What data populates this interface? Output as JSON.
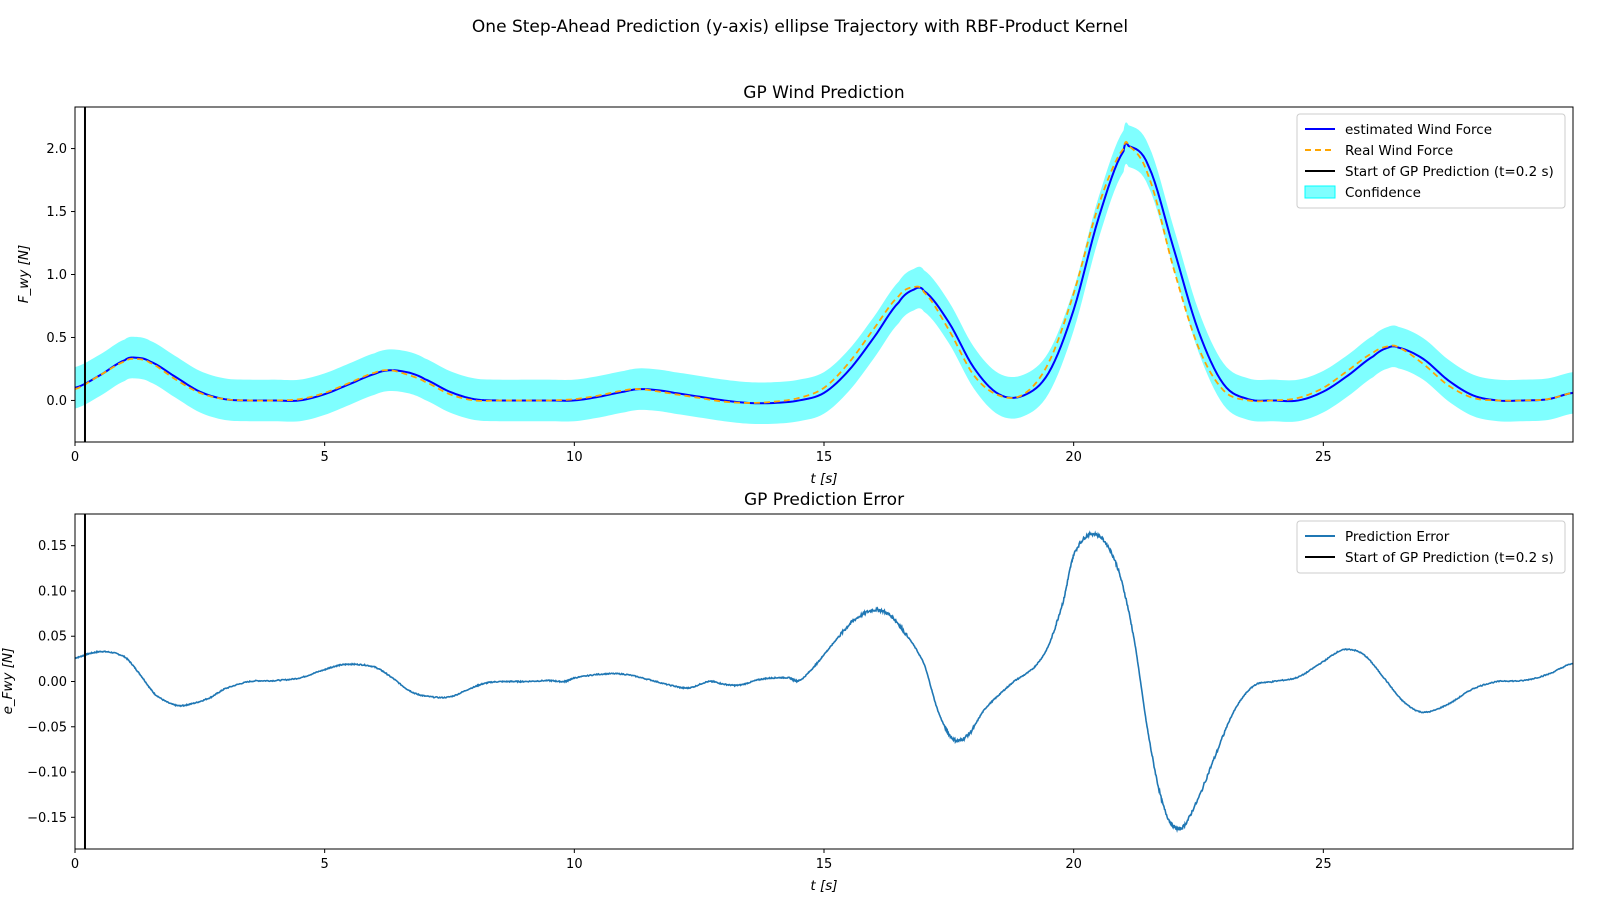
{
  "figure": {
    "suptitle": "One Step-Ahead Prediction (y-axis) ellipse Trajectory with RBF-Product Kernel"
  },
  "chart_data": [
    {
      "type": "line",
      "title": "GP Wind Prediction",
      "xlabel": "t [s]",
      "ylabel": "F_wy [N]",
      "xlim": [
        0,
        30
      ],
      "ylim": [
        -0.33,
        2.33
      ],
      "xticks": [
        0,
        5,
        10,
        15,
        20,
        25
      ],
      "xtick_labels": [
        "0",
        "5",
        "10",
        "15",
        "20",
        "25"
      ],
      "yticks": [
        0.0,
        0.5,
        1.0,
        1.5,
        2.0
      ],
      "ytick_labels": [
        "0.0",
        "0.5",
        "1.0",
        "1.5",
        "2.0"
      ],
      "grid": false,
      "legend_position": "top-right",
      "vline": {
        "x": 0.2,
        "label": "Start of GP Prediction (t=0.2 s)",
        "color": "#000000"
      },
      "series": [
        {
          "name": "estimated Wind Force",
          "style": "solid",
          "color": "#0000ff"
        },
        {
          "name": "Real Wind Force",
          "style": "dashed",
          "color": "#ffa500"
        },
        {
          "name": "Confidence",
          "style": "band",
          "color": "#00ffff",
          "halfwidth": 0.165
        }
      ],
      "x": [
        0,
        0.5,
        1,
        1.2,
        1.5,
        2,
        2.5,
        3,
        3.5,
        4,
        4.5,
        5,
        5.5,
        6,
        6.3,
        6.7,
        7,
        7.5,
        8,
        8.5,
        9,
        9.5,
        10,
        10.5,
        11,
        11.3,
        11.7,
        12,
        12.5,
        13,
        13.5,
        14,
        14.5,
        15,
        15.5,
        16,
        16.5,
        16.8,
        17,
        17.5,
        18,
        18.5,
        19,
        19.5,
        20,
        20.5,
        21,
        21.1,
        21.5,
        22,
        22.5,
        23,
        23.5,
        24,
        24.5,
        25,
        25.5,
        26,
        26.3,
        26.5,
        27,
        27.5,
        28,
        28.5,
        29,
        29.5,
        30
      ],
      "real": [
        0.09,
        0.2,
        0.31,
        0.33,
        0.3,
        0.17,
        0.06,
        0.01,
        0.0,
        0.0,
        0.01,
        0.06,
        0.14,
        0.22,
        0.24,
        0.2,
        0.15,
        0.05,
        0.0,
        0.0,
        0.0,
        0.0,
        0.01,
        0.04,
        0.08,
        0.09,
        0.07,
        0.05,
        0.02,
        -0.01,
        -0.02,
        -0.01,
        0.02,
        0.1,
        0.3,
        0.57,
        0.83,
        0.9,
        0.86,
        0.56,
        0.2,
        0.04,
        0.05,
        0.3,
        0.85,
        1.55,
        2.0,
        2.02,
        1.78,
        1.05,
        0.42,
        0.08,
        0.0,
        0.0,
        0.02,
        0.1,
        0.24,
        0.38,
        0.43,
        0.42,
        0.29,
        0.12,
        0.02,
        0.0,
        0.0,
        0.01,
        0.06
      ],
      "estimated": [
        0.1,
        0.2,
        0.32,
        0.34,
        0.31,
        0.19,
        0.07,
        0.01,
        0.0,
        0.0,
        0.0,
        0.05,
        0.13,
        0.21,
        0.24,
        0.22,
        0.17,
        0.07,
        0.01,
        0.0,
        0.0,
        0.0,
        0.0,
        0.03,
        0.07,
        0.09,
        0.08,
        0.06,
        0.03,
        0.0,
        -0.02,
        -0.02,
        0.0,
        0.06,
        0.24,
        0.5,
        0.78,
        0.88,
        0.87,
        0.62,
        0.26,
        0.05,
        0.04,
        0.22,
        0.72,
        1.45,
        1.98,
        2.02,
        1.86,
        1.21,
        0.55,
        0.13,
        0.01,
        0.0,
        0.0,
        0.07,
        0.2,
        0.35,
        0.42,
        0.42,
        0.33,
        0.16,
        0.04,
        0.0,
        0.0,
        0.01,
        0.06
      ]
    },
    {
      "type": "line",
      "title": "GP Prediction Error",
      "xlabel": "t [s]",
      "ylabel": "e_Fwy [N]",
      "xlim": [
        0,
        30
      ],
      "ylim": [
        -0.185,
        0.185
      ],
      "xticks": [
        0,
        5,
        10,
        15,
        20,
        25
      ],
      "xtick_labels": [
        "0",
        "5",
        "10",
        "15",
        "20",
        "25"
      ],
      "yticks": [
        0.15,
        0.1,
        0.05,
        0.0,
        -0.05,
        -0.1,
        -0.15
      ],
      "ytick_labels": [
        "0.15",
        "0.10",
        "0.05",
        "0.00",
        "−0.05",
        "−0.10",
        "−0.15"
      ],
      "grid": false,
      "legend_position": "top-right",
      "vline": {
        "x": 0.2,
        "label": "Start of GP Prediction (t=0.2 s)",
        "color": "#000000"
      },
      "series": [
        {
          "name": "Prediction Error",
          "style": "solid",
          "color": "#1f77b4"
        }
      ],
      "x": [
        0,
        0.3,
        0.6,
        1.0,
        1.3,
        1.6,
        2.0,
        2.3,
        2.7,
        3.0,
        3.5,
        4.0,
        4.5,
        5.0,
        5.3,
        5.6,
        6.0,
        6.3,
        6.7,
        7.0,
        7.5,
        8.0,
        8.3,
        8.7,
        9.0,
        9.5,
        9.8,
        10.0,
        10.5,
        11.0,
        11.5,
        12.0,
        12.3,
        12.7,
        13.0,
        13.3,
        13.7,
        14.0,
        14.3,
        14.5,
        14.8,
        15.0,
        15.3,
        15.6,
        16.0,
        16.3,
        16.6,
        17.0,
        17.3,
        17.6,
        17.9,
        18.2,
        18.5,
        18.8,
        19.2,
        19.5,
        19.8,
        20.0,
        20.3,
        20.6,
        20.9,
        21.2,
        21.5,
        21.8,
        22.1,
        22.4,
        22.8,
        23.2,
        23.6,
        24.0,
        24.5,
        25.0,
        25.4,
        25.8,
        26.2,
        26.6,
        27.0,
        27.5,
        28.0,
        28.5,
        29.0,
        29.5,
        30.0
      ],
      "values": [
        0.026,
        0.031,
        0.033,
        0.027,
        0.008,
        -0.014,
        -0.026,
        -0.025,
        -0.018,
        -0.008,
        0.0,
        0.001,
        0.004,
        0.013,
        0.018,
        0.019,
        0.016,
        0.006,
        -0.01,
        -0.016,
        -0.017,
        -0.006,
        -0.001,
        0.0,
        0.0,
        0.001,
        0.0,
        0.004,
        0.008,
        0.008,
        0.002,
        -0.005,
        -0.007,
        0.0,
        -0.003,
        -0.004,
        0.002,
        0.004,
        0.004,
        0.001,
        0.016,
        0.03,
        0.05,
        0.068,
        0.079,
        0.074,
        0.055,
        0.02,
        -0.035,
        -0.064,
        -0.058,
        -0.032,
        -0.015,
        0.0,
        0.015,
        0.04,
        0.09,
        0.14,
        0.162,
        0.156,
        0.122,
        0.05,
        -0.06,
        -0.138,
        -0.163,
        -0.14,
        -0.087,
        -0.034,
        -0.005,
        0.0,
        0.005,
        0.022,
        0.035,
        0.03,
        0.005,
        -0.022,
        -0.034,
        -0.025,
        -0.008,
        0.0,
        0.001,
        0.008,
        0.02
      ]
    }
  ]
}
